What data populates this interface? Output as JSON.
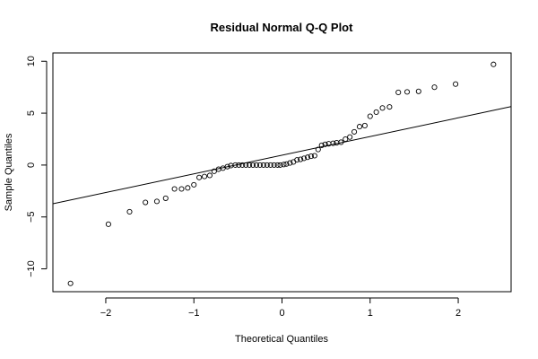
{
  "chart_data": {
    "type": "scatter",
    "title": "Residual Normal Q-Q Plot",
    "xlabel": "Theoretical Quantiles",
    "ylabel": "Sample Quantiles",
    "xlim": [
      -2.6,
      2.6
    ],
    "ylim": [
      -12.2,
      10.8
    ],
    "x_ticks": [
      -2,
      -1,
      0,
      1,
      2
    ],
    "x_tick_labels": [
      "−2",
      "−1",
      "0",
      "1",
      "2"
    ],
    "y_ticks": [
      -10,
      -5,
      0,
      5,
      10
    ],
    "y_tick_labels": [
      "−10",
      "−5",
      "0",
      "5",
      "10"
    ],
    "grid": false,
    "legend": "none",
    "marker": "open-circle",
    "reference_line": {
      "intercept": 0.95,
      "slope": 1.8
    },
    "x": [
      -2.4,
      -1.97,
      -1.73,
      -1.55,
      -1.42,
      -1.32,
      -1.22,
      -1.14,
      -1.07,
      -1.0,
      -0.94,
      -0.88,
      -0.82,
      -0.77,
      -0.72,
      -0.67,
      -0.62,
      -0.58,
      -0.53,
      -0.49,
      -0.45,
      -0.41,
      -0.37,
      -0.33,
      -0.29,
      -0.25,
      -0.21,
      -0.17,
      -0.13,
      -0.09,
      -0.05,
      -0.02,
      0.02,
      0.05,
      0.09,
      0.13,
      0.17,
      0.21,
      0.25,
      0.29,
      0.33,
      0.37,
      0.41,
      0.45,
      0.49,
      0.53,
      0.58,
      0.62,
      0.67,
      0.72,
      0.77,
      0.82,
      0.88,
      0.94,
      1.0,
      1.07,
      1.14,
      1.22,
      1.32,
      1.42,
      1.55,
      1.73,
      1.97,
      2.4
    ],
    "y": [
      -11.4,
      -5.7,
      -4.5,
      -3.6,
      -3.5,
      -3.2,
      -2.3,
      -2.3,
      -2.2,
      -1.9,
      -1.2,
      -1.1,
      -1.0,
      -0.6,
      -0.4,
      -0.3,
      -0.15,
      -0.05,
      0.0,
      0.0,
      0.0,
      0.0,
      0.0,
      0.0,
      0.0,
      0.0,
      0.0,
      0.0,
      0.0,
      0.0,
      0.0,
      0.0,
      0.05,
      0.1,
      0.2,
      0.3,
      0.5,
      0.55,
      0.65,
      0.75,
      0.85,
      0.9,
      1.5,
      1.9,
      2.0,
      2.05,
      2.1,
      2.15,
      2.2,
      2.5,
      2.7,
      3.2,
      3.7,
      3.8,
      4.7,
      5.1,
      5.5,
      5.6,
      7.0,
      7.05,
      7.1,
      7.5,
      7.8,
      9.7
    ]
  }
}
